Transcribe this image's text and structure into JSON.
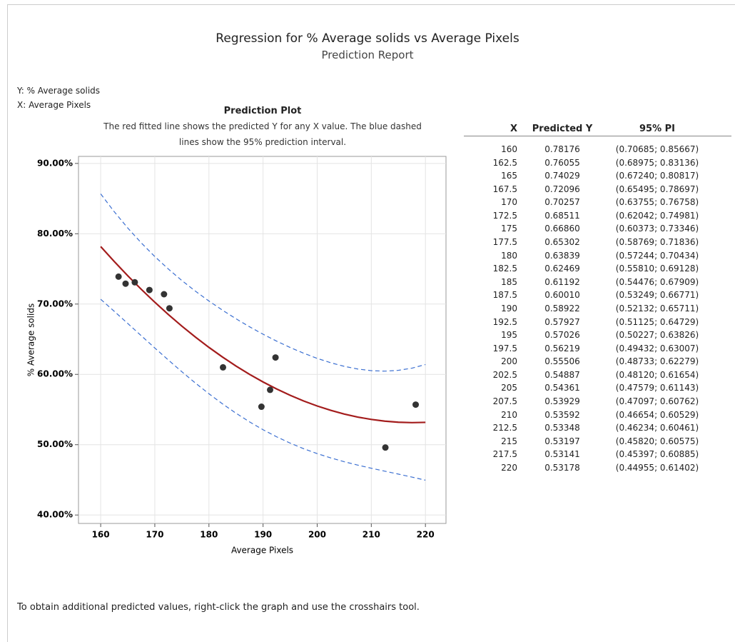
{
  "header": {
    "title": "Regression for % Average solids vs Average Pixels",
    "subtitle": "Prediction Report"
  },
  "variables": [
    "Y: % Average solids",
    "X: Average Pixels"
  ],
  "chart_data": {
    "type": "line",
    "title": "Prediction Plot",
    "subtitle": "The red fitted line shows the predicted Y for any X value. The blue dashed lines show the 95% prediction interval.",
    "x_label": "Average Pixels",
    "y_label": "% Average solids",
    "x": [
      160,
      162.5,
      165,
      167.5,
      170,
      172.5,
      175,
      177.5,
      180,
      182.5,
      185,
      187.5,
      190,
      192.5,
      195,
      197.5,
      200,
      202.5,
      205,
      207.5,
      210,
      212.5,
      215,
      217.5,
      220
    ],
    "series": [
      {
        "color": "#a31c1c",
        "style": "solid",
        "values": [
          78.176,
          76.055,
          74.029,
          72.096,
          70.257,
          68.511,
          66.86,
          65.302,
          63.839,
          62.469,
          61.192,
          60.01,
          58.922,
          57.927,
          57.026,
          56.219,
          55.506,
          54.887,
          54.361,
          53.929,
          53.592,
          53.348,
          53.197,
          53.141,
          53.178
        ]
      },
      {
        "color": "#3b6fd1",
        "style": "dashed",
        "values": [
          70.685,
          68.975,
          67.24,
          65.495,
          63.755,
          62.042,
          60.373,
          58.769,
          57.244,
          55.81,
          54.476,
          53.249,
          52.132,
          51.125,
          50.227,
          49.432,
          48.733,
          48.12,
          47.579,
          47.097,
          46.654,
          46.234,
          45.82,
          45.397,
          44.955
        ]
      },
      {
        "color": "#3b6fd1",
        "style": "dashed",
        "values": [
          85.667,
          83.136,
          80.817,
          78.697,
          76.758,
          74.981,
          73.346,
          71.836,
          70.434,
          69.128,
          67.909,
          66.771,
          65.711,
          64.729,
          63.826,
          63.007,
          62.279,
          61.654,
          61.143,
          60.762,
          60.529,
          60.461,
          60.575,
          60.885,
          61.402
        ]
      },
      {
        "color": "#333333",
        "style": "points",
        "x": [
          163.3,
          164.6,
          166.3,
          169.0,
          171.7,
          172.7,
          182.6,
          192.3,
          191.3,
          189.7,
          212.6,
          218.2
        ],
        "values": [
          73.9,
          72.9,
          73.1,
          72.0,
          71.4,
          69.4,
          61.0,
          62.4,
          57.8,
          55.4,
          49.6,
          55.7
        ]
      }
    ],
    "xlim": [
      155.9,
      223.8
    ],
    "ylim": [
      38.8,
      91.0
    ],
    "xticks": [
      160,
      170,
      180,
      190,
      200,
      210,
      220
    ],
    "yticks": [
      {
        "value": 40,
        "label": "40.00%"
      },
      {
        "value": 50,
        "label": "50.00%"
      },
      {
        "value": 60,
        "label": "60.00%"
      },
      {
        "value": 70,
        "label": "70.00%"
      },
      {
        "value": 80,
        "label": "80.00%"
      },
      {
        "value": 90,
        "label": "90.00%"
      }
    ],
    "grid": true
  },
  "table": {
    "columns": [
      "X",
      "Predicted Y",
      "95% PI"
    ],
    "rows": [
      [
        "160",
        "0.78176",
        "(0.70685; 0.85667)"
      ],
      [
        "162.5",
        "0.76055",
        "(0.68975; 0.83136)"
      ],
      [
        "165",
        "0.74029",
        "(0.67240; 0.80817)"
      ],
      [
        "167.5",
        "0.72096",
        "(0.65495; 0.78697)"
      ],
      [
        "170",
        "0.70257",
        "(0.63755; 0.76758)"
      ],
      [
        "172.5",
        "0.68511",
        "(0.62042; 0.74981)"
      ],
      [
        "175",
        "0.66860",
        "(0.60373; 0.73346)"
      ],
      [
        "177.5",
        "0.65302",
        "(0.58769; 0.71836)"
      ],
      [
        "180",
        "0.63839",
        "(0.57244; 0.70434)"
      ],
      [
        "182.5",
        "0.62469",
        "(0.55810; 0.69128)"
      ],
      [
        "185",
        "0.61192",
        "(0.54476; 0.67909)"
      ],
      [
        "187.5",
        "0.60010",
        "(0.53249; 0.66771)"
      ],
      [
        "190",
        "0.58922",
        "(0.52132; 0.65711)"
      ],
      [
        "192.5",
        "0.57927",
        "(0.51125; 0.64729)"
      ],
      [
        "195",
        "0.57026",
        "(0.50227; 0.63826)"
      ],
      [
        "197.5",
        "0.56219",
        "(0.49432; 0.63007)"
      ],
      [
        "200",
        "0.55506",
        "(0.48733; 0.62279)"
      ],
      [
        "202.5",
        "0.54887",
        "(0.48120; 0.61654)"
      ],
      [
        "205",
        "0.54361",
        "(0.47579; 0.61143)"
      ],
      [
        "207.5",
        "0.53929",
        "(0.47097; 0.60762)"
      ],
      [
        "210",
        "0.53592",
        "(0.46654; 0.60529)"
      ],
      [
        "212.5",
        "0.53348",
        "(0.46234; 0.60461)"
      ],
      [
        "215",
        "0.53197",
        "(0.45820; 0.60575)"
      ],
      [
        "217.5",
        "0.53141",
        "(0.45397; 0.60885)"
      ],
      [
        "220",
        "0.53178",
        "(0.44955; 0.61402)"
      ]
    ]
  },
  "footer": "To obtain additional predicted values, right-click the graph and use the crosshairs tool."
}
